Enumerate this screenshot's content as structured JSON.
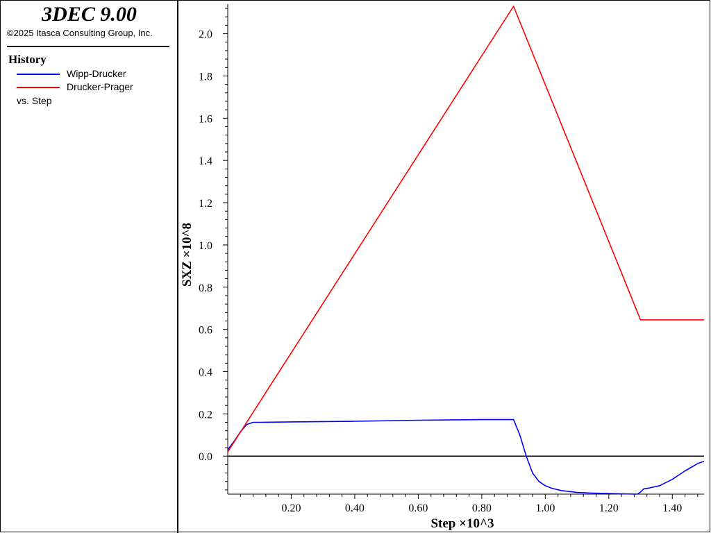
{
  "panel": {
    "app_title": "3DEC 9.00",
    "copyright": "©2025 Itasca Consulting Group, Inc.",
    "legend_heading": "History",
    "vs_label": "vs. Step"
  },
  "chart_data": {
    "type": "line",
    "xlabel": "Step ×10^3",
    "ylabel": "SXZ ×10^8",
    "xlim": [
      0,
      1.5
    ],
    "ylim": [
      -0.18,
      2.14
    ],
    "x_ticks": [
      0.2,
      0.4,
      0.6,
      0.8,
      1.0,
      1.2,
      1.4
    ],
    "x_tick_labels": [
      "0.20",
      "0.40",
      "0.60",
      "0.80",
      "1.00",
      "1.20",
      "1.40"
    ],
    "y_ticks": [
      0.0,
      0.2,
      0.4,
      0.6,
      0.8,
      1.0,
      1.2,
      1.4,
      1.6,
      1.8,
      2.0
    ],
    "y_tick_labels": [
      "0.0",
      "0.2",
      "0.4",
      "0.6",
      "0.8",
      "1.0",
      "1.2",
      "1.4",
      "1.6",
      "1.8",
      "2.0"
    ],
    "zero_line": true,
    "grid": false,
    "legend_position": "left panel",
    "series": [
      {
        "name": "Wipp-Drucker",
        "color": "#0000ff",
        "x": [
          0.0,
          0.02,
          0.04,
          0.06,
          0.08,
          0.1,
          0.2,
          0.4,
          0.6,
          0.8,
          0.9,
          0.92,
          0.94,
          0.96,
          0.98,
          1.0,
          1.02,
          1.05,
          1.1,
          1.15,
          1.2,
          1.25,
          1.29,
          1.3,
          1.31,
          1.33,
          1.36,
          1.4,
          1.44,
          1.48,
          1.5
        ],
        "values": [
          0.03,
          0.07,
          0.115,
          0.15,
          0.16,
          0.16,
          0.162,
          0.165,
          0.17,
          0.173,
          0.173,
          0.1,
          0.0,
          -0.08,
          -0.12,
          -0.14,
          -0.152,
          -0.163,
          -0.172,
          -0.175,
          -0.177,
          -0.179,
          -0.18,
          -0.17,
          -0.155,
          -0.15,
          -0.14,
          -0.11,
          -0.07,
          -0.035,
          -0.025
        ]
      },
      {
        "name": "Drucker-Prager",
        "color": "#ff0000",
        "x": [
          0.0,
          0.9,
          1.3,
          1.5
        ],
        "values": [
          0.02,
          2.13,
          0.645,
          0.645
        ]
      }
    ]
  }
}
